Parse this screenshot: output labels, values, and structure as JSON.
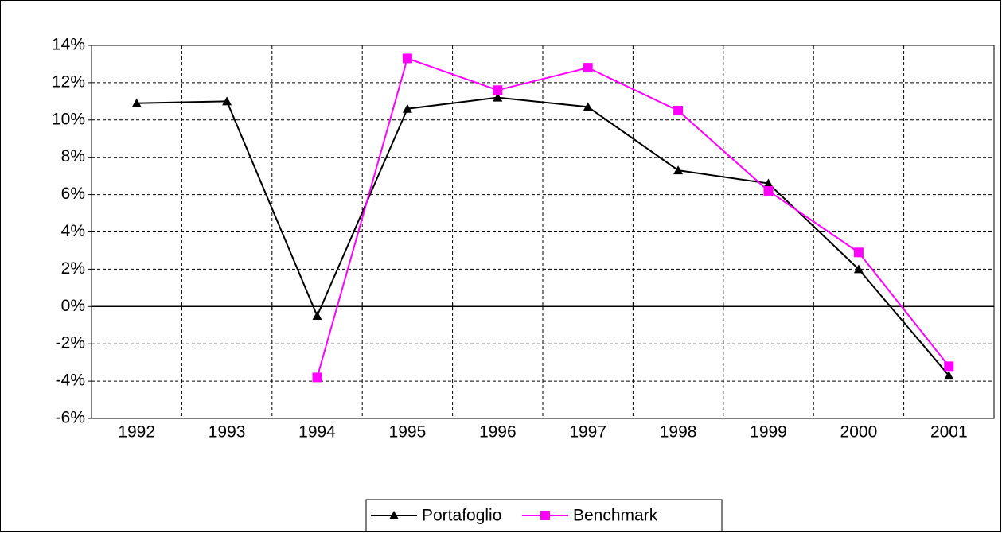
{
  "chart_data": {
    "type": "line",
    "categories": [
      "1992",
      "1993",
      "1994",
      "1995",
      "1996",
      "1997",
      "1998",
      "1999",
      "2000",
      "2001"
    ],
    "series": [
      {
        "name": "Portafoglio",
        "color": "#000000",
        "marker": "triangle",
        "values": [
          10.9,
          11.0,
          -0.5,
          10.6,
          11.2,
          10.7,
          7.3,
          6.6,
          2.0,
          -3.7
        ]
      },
      {
        "name": "Benchmark",
        "color": "#ff00ff",
        "marker": "square",
        "values": [
          null,
          null,
          -3.8,
          13.3,
          11.6,
          12.8,
          10.5,
          6.2,
          2.9,
          -3.2
        ]
      }
    ],
    "ylim": [
      -6,
      14
    ],
    "yticks": [
      {
        "value": -6,
        "label": "-6%"
      },
      {
        "value": -4,
        "label": "-4%"
      },
      {
        "value": -2,
        "label": "-2%"
      },
      {
        "value": 0,
        "label": "0%"
      },
      {
        "value": 2,
        "label": "2%"
      },
      {
        "value": 4,
        "label": "4%"
      },
      {
        "value": 6,
        "label": "6%"
      },
      {
        "value": 8,
        "label": "8%"
      },
      {
        "value": 10,
        "label": "10%"
      },
      {
        "value": 12,
        "label": "12%"
      },
      {
        "value": 14,
        "label": "14%"
      }
    ],
    "grid": true,
    "legend": "bottom"
  }
}
